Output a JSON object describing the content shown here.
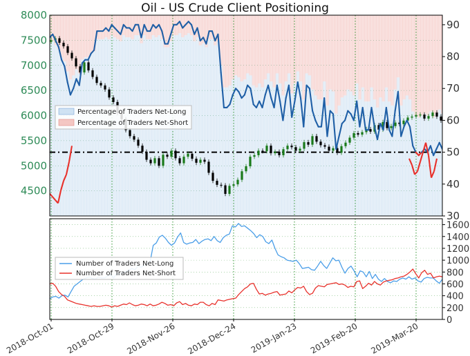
{
  "chart_data": {
    "type": "line",
    "title": "Oil - US Crude Client Positioning",
    "top_panel": {
      "y_left_ticks": [
        8000,
        7500,
        7000,
        6500,
        6000,
        5500,
        5000,
        4500
      ],
      "y_left_range": [
        4000,
        8000
      ],
      "y_right_ticks": [
        90,
        80,
        70,
        60,
        50,
        40,
        30
      ],
      "y_right_range": [
        30,
        93
      ],
      "reference_line_pct": 50,
      "legend": [
        "Percentage of Traders Net-Long",
        "Percentage of Traders Net-Short"
      ],
      "colors": {
        "net_long_fill": "#cfe2f3",
        "net_short_fill": "#f4c7c3",
        "net_long_line": "#1f5fa6",
        "net_short_line": "#e8302a",
        "candle_up": "#1a7a1a",
        "candle_down": "#000000"
      },
      "net_long_pct": [
        86,
        87,
        85,
        83,
        79,
        77,
        72,
        68,
        70,
        73,
        71,
        78,
        79,
        79,
        81,
        82,
        88,
        88,
        88,
        89,
        88,
        90,
        89,
        88,
        87,
        90,
        89,
        89,
        88,
        90,
        90,
        86,
        90,
        88,
        88,
        90,
        89,
        90,
        88,
        84,
        84,
        87,
        90,
        90,
        91,
        89,
        90,
        91,
        90,
        87,
        89,
        85,
        86,
        84,
        88,
        88,
        85,
        87,
        75,
        64,
        64,
        65,
        68,
        70,
        69,
        67,
        68,
        71,
        70,
        65,
        64,
        66,
        64,
        68,
        71,
        67,
        64,
        71,
        66,
        60,
        67,
        71,
        61,
        66,
        72,
        67,
        58,
        71,
        70,
        63,
        60,
        58,
        58,
        67,
        55,
        63,
        62,
        51,
        55,
        59,
        60,
        63,
        62,
        60,
        66,
        58,
        64,
        57,
        57,
        64,
        58,
        54,
        59,
        57,
        64,
        57,
        55,
        63,
        69,
        55,
        58,
        60,
        58,
        52,
        50,
        49,
        50,
        51,
        50,
        52,
        49,
        51,
        53,
        51
      ],
      "price": [
        7500,
        7540,
        7450,
        7380,
        7250,
        7140,
        6980,
        6860,
        7060,
        6900,
        6770,
        6650,
        6600,
        6520,
        6360,
        6270,
        6050,
        5930,
        5710,
        5590,
        5520,
        5400,
        5280,
        5120,
        5050,
        5150,
        5000,
        5220,
        5180,
        5300,
        5150,
        5050,
        5180,
        5240,
        5140,
        5060,
        5120,
        5080,
        4860,
        4700,
        4620,
        4610,
        4440,
        4600,
        4630,
        4720,
        4890,
        4990,
        5180,
        5210,
        5300,
        5290,
        5400,
        5250,
        5280,
        5210,
        5330,
        5400,
        5370,
        5300,
        5340,
        5470,
        5420,
        5590,
        5480,
        5410,
        5380,
        5300,
        5350,
        5260,
        5390,
        5460,
        5560,
        5650,
        5620,
        5670,
        5730,
        5680,
        5810,
        5720,
        5870,
        5750,
        5790,
        5860,
        5830,
        5900,
        5960,
        5980,
        6010,
        6020,
        5940,
        5990,
        6060,
        5980,
        5900
      ]
    },
    "bottom_panel": {
      "y_ticks": [
        0,
        200,
        400,
        600,
        800,
        1000,
        1200,
        1400,
        1600
      ],
      "y_range": [
        0,
        1700
      ],
      "legend": [
        "Number of Traders Net-Long",
        "Number of Traders Net-Short"
      ],
      "colors": {
        "net_long": "#4a9ee8",
        "net_short": "#e8302a"
      },
      "net_long": [
        350,
        380,
        390,
        360,
        400,
        410,
        380,
        470,
        560,
        600,
        640,
        680,
        700,
        720,
        690,
        680,
        720,
        700,
        700,
        730,
        760,
        700,
        780,
        760,
        790,
        800,
        830,
        860,
        840,
        900,
        880,
        910,
        940,
        980,
        1250,
        1290,
        1390,
        1420,
        1370,
        1300,
        1250,
        1290,
        1390,
        1460,
        1300,
        1270,
        1290,
        1300,
        1350,
        1280,
        1320,
        1350,
        1360,
        1330,
        1400,
        1330,
        1300,
        1380,
        1420,
        1440,
        1580,
        1560,
        1620,
        1570,
        1580,
        1540,
        1500,
        1450,
        1380,
        1430,
        1400,
        1310,
        1280,
        1340,
        1200,
        1090,
        1060,
        1040,
        1000,
        990,
        980,
        1000,
        940,
        860,
        870,
        880,
        840,
        830,
        900,
        980,
        910,
        860,
        950,
        1040,
        990,
        1000,
        880,
        780,
        860,
        900,
        820,
        720,
        820,
        800,
        720,
        810,
        690,
        760,
        680,
        640,
        690,
        640,
        620,
        650,
        640,
        680,
        700,
        680,
        720,
        680,
        700,
        650,
        630,
        690,
        710,
        700,
        700,
        650,
        610,
        680
      ],
      "net_short": [
        600,
        610,
        560,
        470,
        420,
        390,
        330,
        310,
        290,
        270,
        260,
        250,
        240,
        230,
        220,
        230,
        220,
        220,
        230,
        240,
        230,
        210,
        230,
        220,
        240,
        260,
        250,
        280,
        250,
        230,
        240,
        260,
        250,
        230,
        260,
        230,
        240,
        260,
        290,
        270,
        240,
        250,
        230,
        280,
        300,
        250,
        270,
        240,
        230,
        260,
        250,
        290,
        290,
        250,
        230,
        270,
        250,
        330,
        320,
        310,
        330,
        340,
        350,
        360,
        420,
        470,
        520,
        550,
        600,
        610,
        510,
        430,
        440,
        410,
        430,
        440,
        460,
        470,
        410,
        420,
        430,
        480,
        450,
        500,
        540,
        530,
        560,
        470,
        420,
        440,
        530,
        570,
        560,
        550,
        590,
        600,
        610,
        620,
        590,
        600,
        580,
        540,
        560,
        550,
        640,
        650,
        520,
        560,
        610,
        580,
        640,
        600,
        580,
        630,
        650,
        660,
        670,
        690,
        700,
        720,
        730,
        760,
        800,
        850,
        770,
        700,
        790,
        830,
        760,
        780,
        700,
        720,
        730,
        720
      ]
    },
    "x_labels": [
      "2018-Oct-01",
      "2018-Oct-29",
      "2018-Nov-26",
      "2018-Dec-24",
      "2019-Jan-23",
      "2019-Feb-20",
      "2019-Mar-20"
    ]
  }
}
